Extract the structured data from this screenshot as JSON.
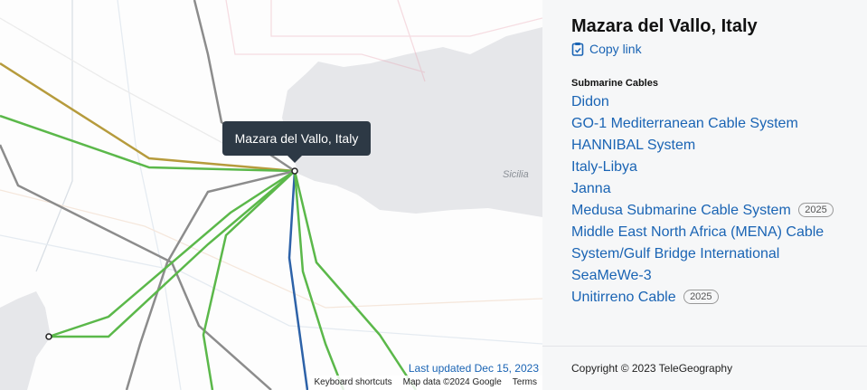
{
  "map": {
    "tooltip": "Mazara del Vallo, Italy",
    "region_label": "Sicilia",
    "last_updated": "Last updated Dec 15, 2023",
    "footer": [
      "Keyboard shortcuts",
      "Map data ©2024 Google",
      "Terms"
    ]
  },
  "panel": {
    "title": "Mazara del Vallo, Italy",
    "copy_link": "Copy link",
    "section_title": "Submarine Cables",
    "cables": [
      {
        "name": "Didon"
      },
      {
        "name": "GO-1 Mediterranean Cable System"
      },
      {
        "name": "HANNIBAL System"
      },
      {
        "name": "Italy-Libya"
      },
      {
        "name": "Janna"
      },
      {
        "name": "Medusa Submarine Cable System",
        "badge": "2025"
      },
      {
        "name": "Middle East North Africa (MENA) Cable System/Gulf Bridge International"
      },
      {
        "name": "SeaMeWe-3"
      },
      {
        "name": "Unitirreno Cable",
        "badge": "2025"
      }
    ],
    "copyright": "Copyright © 2023 TeleGeography"
  }
}
